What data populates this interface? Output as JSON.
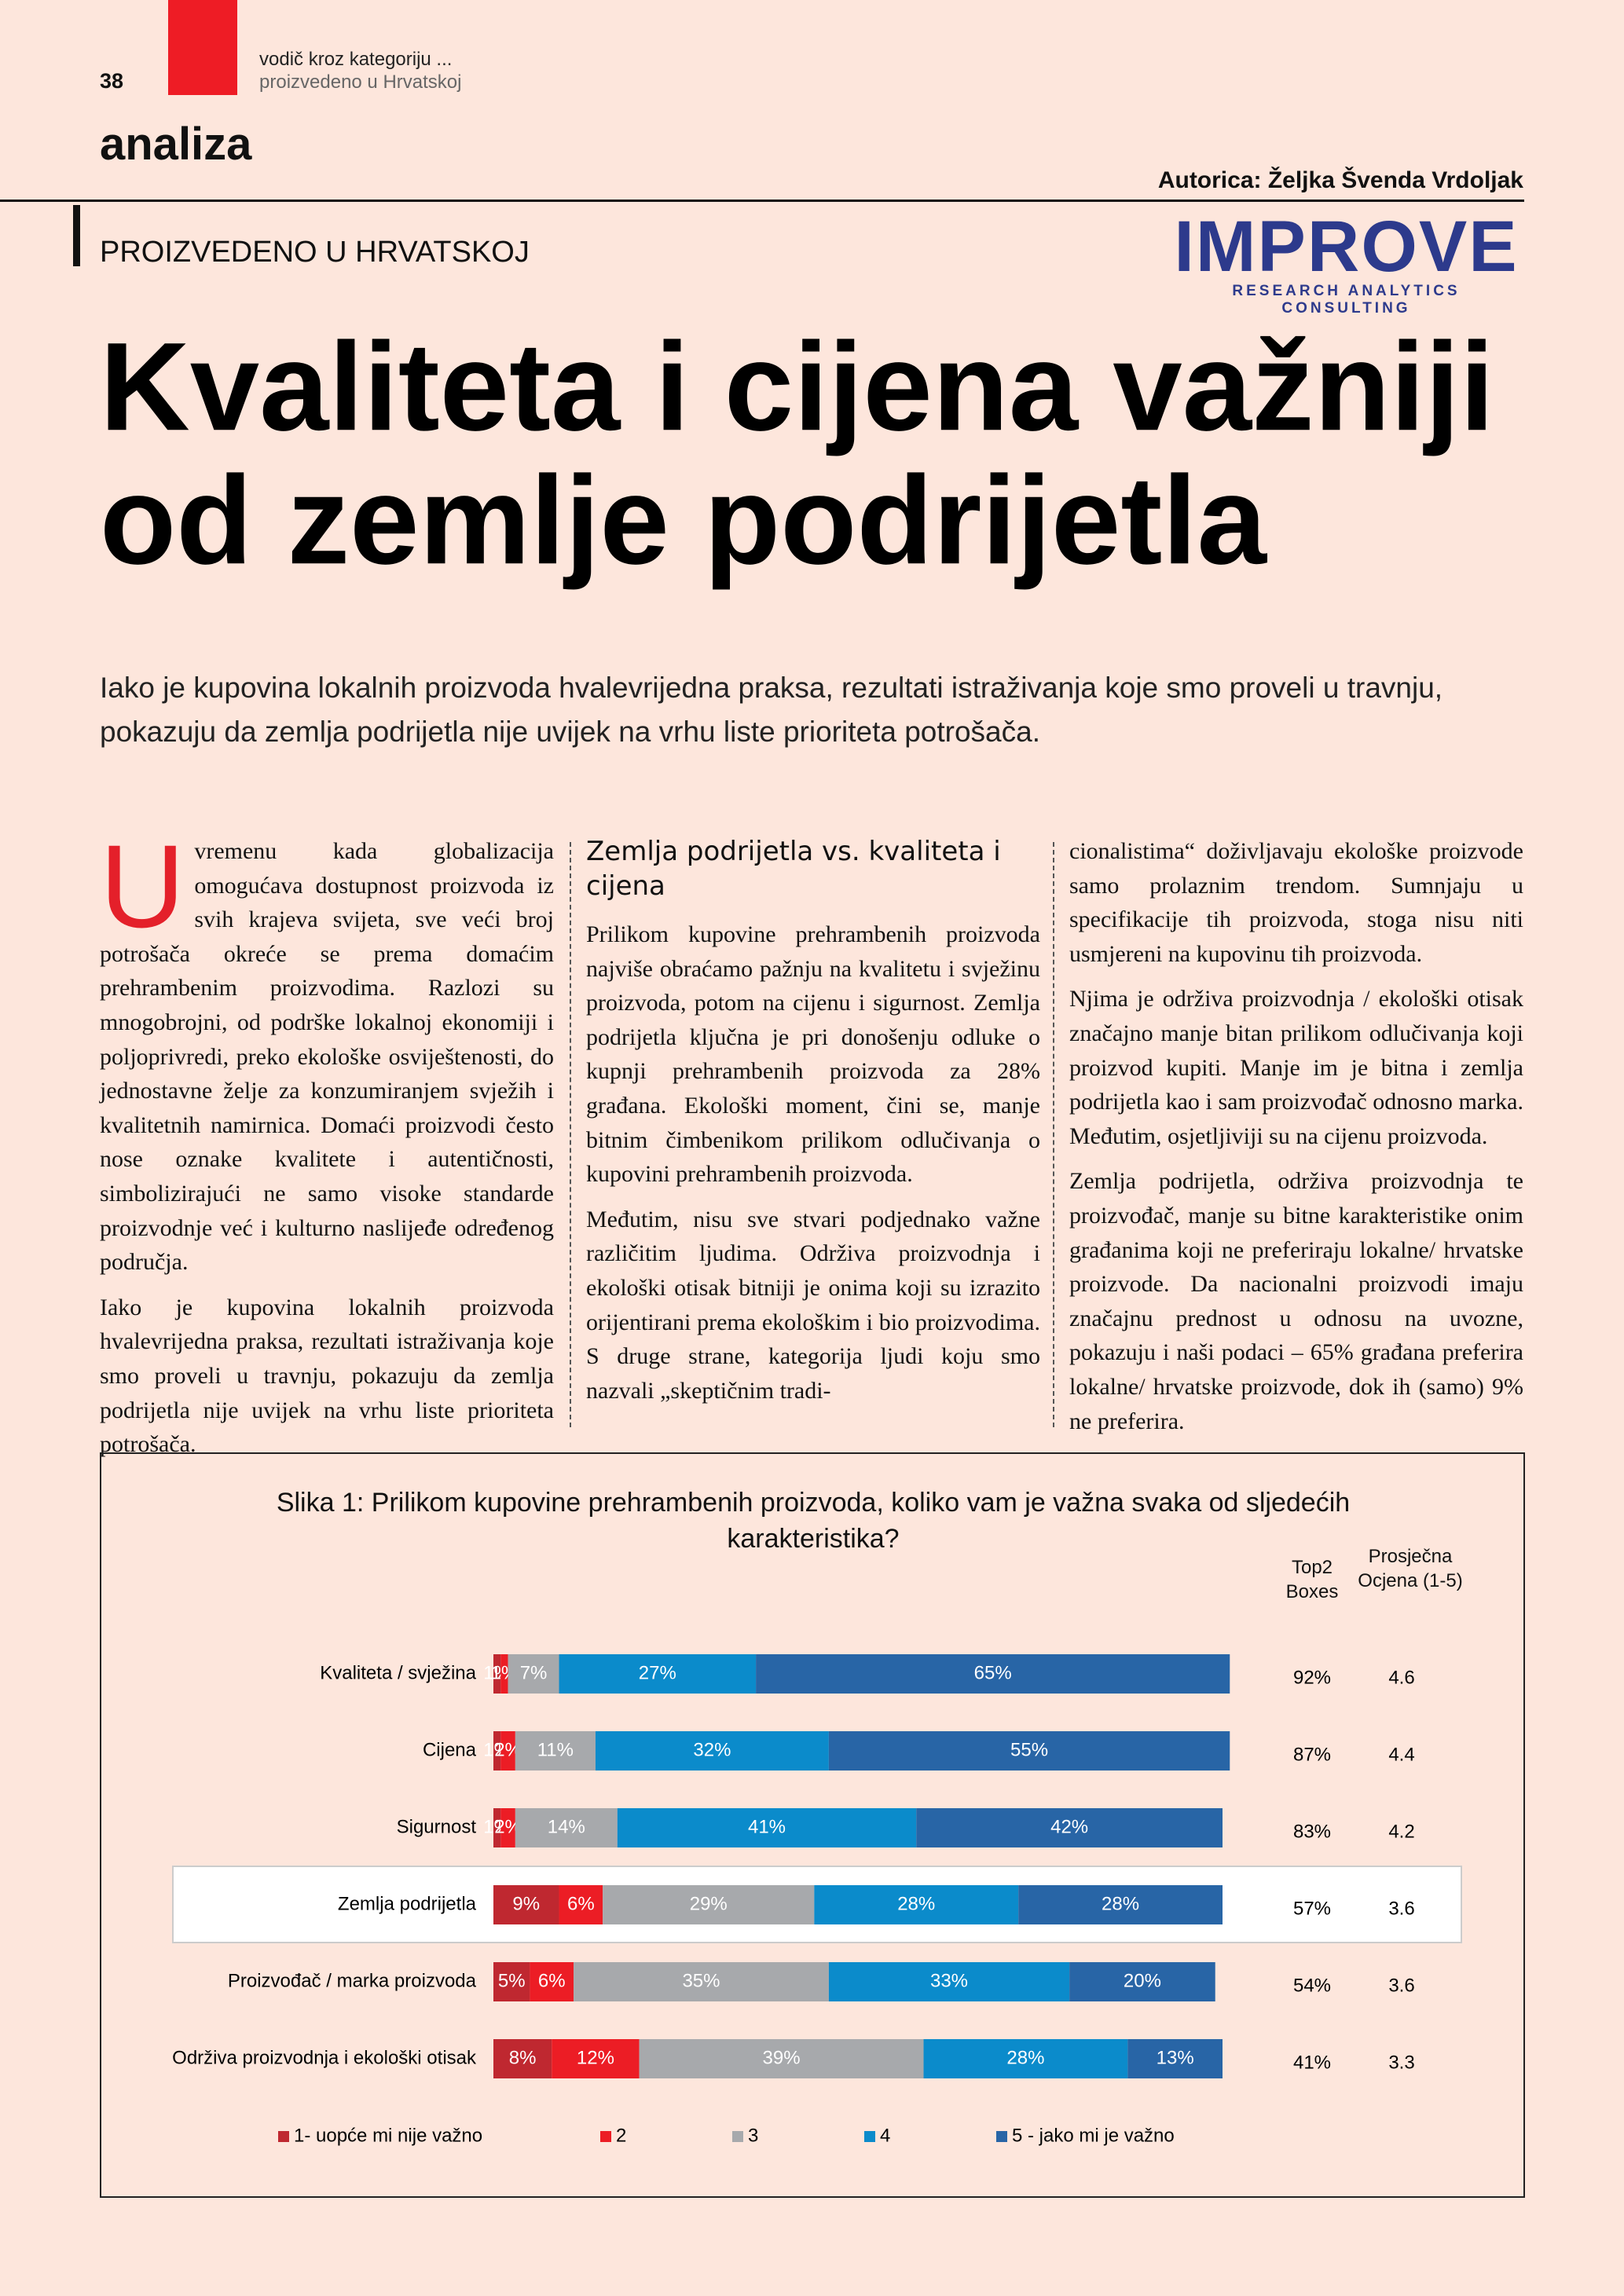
{
  "header": {
    "page_number": "38",
    "section_line1": "vodič kroz kategoriju ...",
    "section_line2": "proizvedeno u Hrvatskoj",
    "rubric": "analiza",
    "author": "Autorica: Željka Švenda Vrdoljak",
    "kicker": "PROIZVEDENO U HRVATSKOJ",
    "logo": "IMPROVE",
    "logo_tagline": "RESEARCH ANALYTICS CONSULTING"
  },
  "article": {
    "title_lines": [
      "Kvaliteta i cijena važniji",
      "od zemlje podrijetla"
    ],
    "lead": "Iako je kupovina lokalnih proizvoda hvalevrijedna praksa, rezultati istraživanja koje smo proveli u travnju, pokazuju da zemlja podrijetla nije uvijek na vrhu liste prioriteta potrošača.",
    "col1": {
      "dropcap": "U",
      "paragraphs": [
        "vremenu kada globalizacija omogućava dostupnost proizvoda iz svih krajeva svijeta, sve veći broj potrošača okreće se prema domaćim prehrambenim proizvodima. Razlozi su mnogobrojni, od podrške lokalnoj ekonomiji i poljoprivredi, preko ekološke osviještenosti, do jednostavne želje za konzumiranjem svježih i kvalitetnih namirnica. Domaći proizvodi često nose oznake kvalitete i autentičnosti, simbolizirajući ne samo visoke standarde proizvodnje već i kulturno naslijeđe određenog područja.",
        "Iako je kupovina lokalnih proizvoda hvalevrijedna praksa, rezultati istraživanja koje smo proveli u travnju, pokazuju da zemlja podrijetla nije uvijek na vrhu liste prioriteta potrošača."
      ]
    },
    "col2": {
      "heading": "Zemlja podrijetla vs. kvaliteta i cijena",
      "paragraphs": [
        "Prilikom kupovine prehrambenih proizvoda najviše obraćamo pažnju na kvalitetu i svježinu proizvoda, potom na cijenu i sigurnost. Zemlja podrijetla ključna je pri donošenju odluke o kupnji prehrambenih proizvoda za 28% građana. Ekološki moment, čini se, manje bitnim čimbenikom prilikom odlučivanja o kupovini prehrambenih proizvoda.",
        "Međutim, nisu sve stvari podjednako važne različitim ljudima. Održiva proizvodnja i ekološki otisak bitniji je onima koji su izrazito orijentirani prema ekološkim i bio proizvodima. S druge strane, kategorija ljudi koju smo nazvali „skeptičnim tradi-"
      ]
    },
    "col3": {
      "paragraphs": [
        "cionalistima“ doživljavaju ekološke proizvode samo prolaznim trendom. Sumnjaju u specifikacije tih proizvoda, stoga nisu niti usmjereni na kupovinu tih proizvoda.",
        "Njima je održiva proizvodnja / ekološki otisak značajno manje bitan prilikom odlučivanja koji proizvod kupiti. Manje im je bitna i zemlja podrijetla kao i sam proizvođač odnosno marka. Međutim, osjetljiviji su na cijenu proizvoda.",
        "Zemlja podrijetla, održiva proizvodnja te proizvođač, manje su bitne karakteristike onim građanima koji ne preferiraju lokalne/ hrvatske proizvode. Da nacionalni proizvodi imaju značajnu prednost u odnosu na uvozne, pokazuju i naši podaci – 65% građana preferira lokalne/ hrvatske proizvode, dok ih (samo) 9% ne preferira."
      ]
    }
  },
  "chart_data": {
    "type": "bar",
    "orientation": "horizontal",
    "stacked": true,
    "title": "Slika 1: Prilikom kupovine prehrambenih proizvoda, koliko vam je važna svaka od sljedećih karakteristika?",
    "categories": [
      "Kvaliteta / svježina",
      "Cijena",
      "Sigurnost",
      "Zemlja podrijetla",
      "Proizvođač / marka proizvoda",
      "Održiva proizvodnja i ekološki otisak"
    ],
    "series": [
      {
        "name": "1- uopće mi nije važno",
        "color": "#bf2830",
        "values": [
          1,
          1,
          1,
          9,
          5,
          8
        ],
        "value_labels": [
          "1%",
          "1%",
          "1%",
          "9%",
          "5%",
          "8%"
        ]
      },
      {
        "name": "2",
        "color": "#ec1d25",
        "values": [
          1,
          2,
          2,
          6,
          6,
          12
        ],
        "value_labels": [
          "1%",
          "2%",
          "2%",
          "6%",
          "6%",
          "12%"
        ]
      },
      {
        "name": "3",
        "color": "#a7a9ac",
        "values": [
          7,
          11,
          14,
          29,
          35,
          39
        ],
        "value_labels": [
          "7%",
          "11%",
          "14%",
          "29%",
          "35%",
          "39%"
        ]
      },
      {
        "name": "4",
        "color": "#0b8bcb",
        "values": [
          27,
          32,
          41,
          28,
          33,
          28
        ],
        "value_labels": [
          "27%",
          "32%",
          "41%",
          "28%",
          "33%",
          "28%"
        ]
      },
      {
        "name": "5 - jako mi je važno",
        "color": "#2865a6",
        "values": [
          65,
          55,
          42,
          28,
          20,
          13
        ],
        "value_labels": [
          "65%",
          "55%",
          "42%",
          "28%",
          "20%",
          "13%"
        ]
      }
    ],
    "xlim": [
      0,
      100
    ],
    "legend": "bottom",
    "top2": {
      "header": "Top2 Boxes",
      "values": [
        92,
        87,
        83,
        57,
        54,
        41
      ],
      "value_labels": [
        "92%",
        "87%",
        "83%",
        "57%",
        "54%",
        "41%"
      ]
    },
    "average": {
      "header": "Prosječna Ocjena (1-5)",
      "values": [
        4.6,
        4.4,
        4.2,
        3.6,
        3.6,
        3.3
      ]
    }
  }
}
